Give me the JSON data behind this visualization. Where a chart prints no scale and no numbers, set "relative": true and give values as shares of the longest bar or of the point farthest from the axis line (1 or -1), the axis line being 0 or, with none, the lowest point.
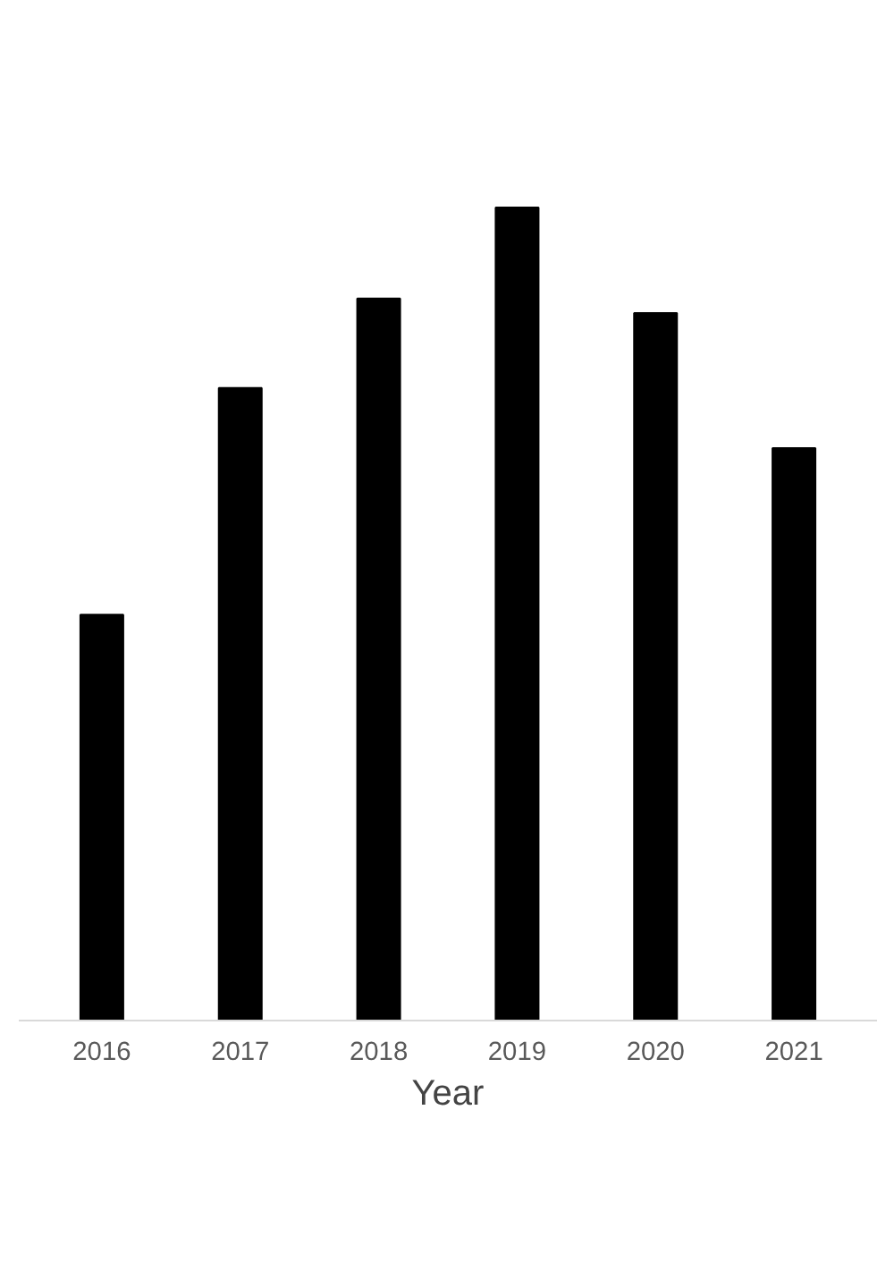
{
  "chart_data": {
    "type": "bar",
    "relative": true,
    "xlabel": "Year",
    "categories": [
      "2016",
      "2017",
      "2018",
      "2019",
      "2020",
      "2021"
    ],
    "values": [
      0.499,
      0.778,
      0.888,
      1,
      0.87,
      0.704
    ],
    "color": "#000000",
    "grid": false
  }
}
